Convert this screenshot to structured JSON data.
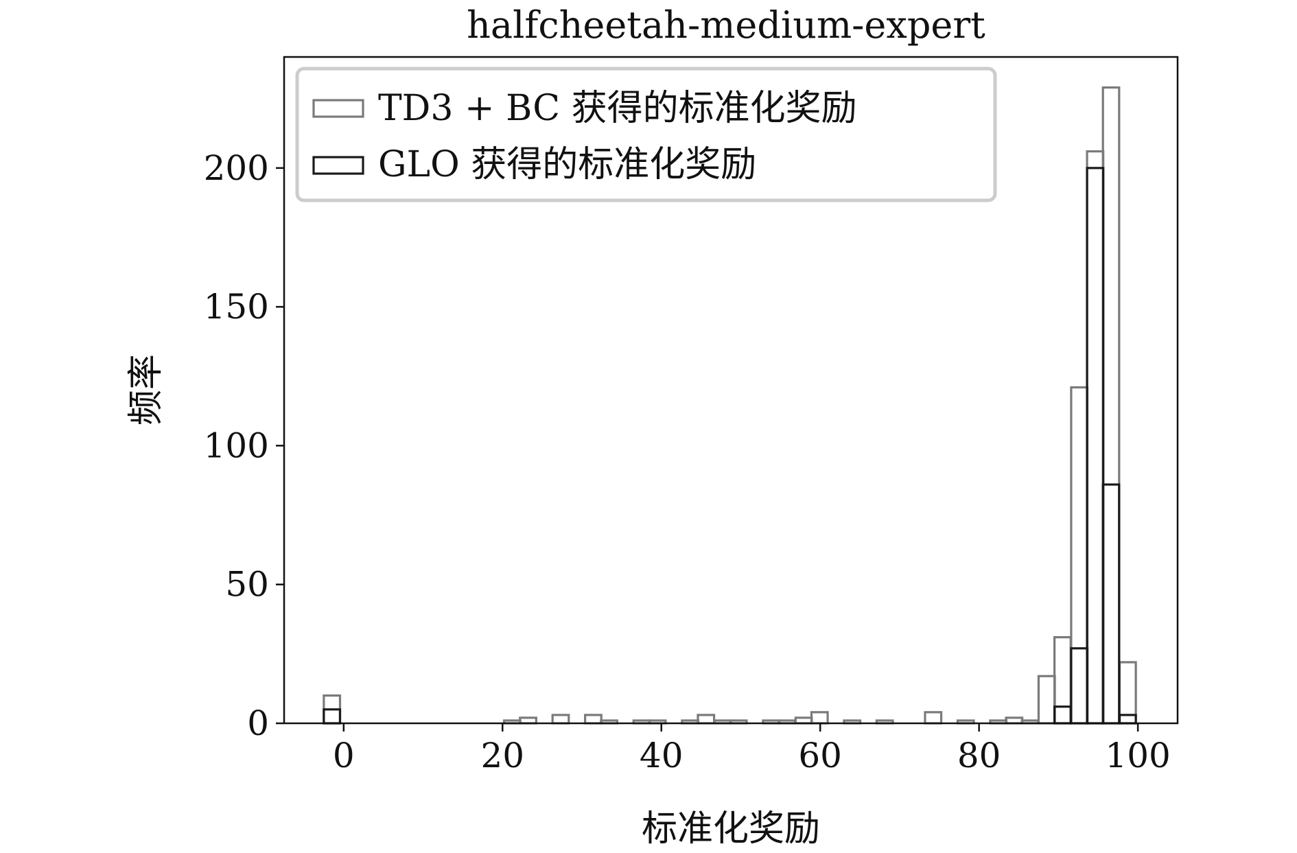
{
  "chart_data": {
    "type": "bar",
    "title": "halfcheetah-medium-expert",
    "xlabel": "标准化奖励",
    "ylabel": "频率",
    "xlim": [
      -7.5,
      105
    ],
    "ylim": [
      0,
      240
    ],
    "xticks": [
      0,
      20,
      40,
      60,
      80,
      100
    ],
    "yticks": [
      0,
      50,
      100,
      150,
      200
    ],
    "grid": false,
    "legend_position": "top-left",
    "bin_width": 2.04,
    "series": [
      {
        "name": "TD3 + BC 获得的标准化奖励",
        "color": "#7a7a7a",
        "bin_starts": [
          -2.5,
          20.2,
          22.2,
          26.3,
          30.4,
          32.4,
          36.5,
          38.5,
          42.6,
          44.6,
          46.7,
          48.7,
          52.8,
          54.8,
          56.9,
          58.9,
          63.0,
          67.1,
          73.2,
          77.3,
          81.4,
          83.4,
          85.4,
          87.5,
          89.5,
          91.6,
          93.6,
          95.6,
          97.7
        ],
        "values": [
          10,
          1,
          2,
          3,
          3,
          1,
          1,
          1,
          1,
          3,
          1,
          1,
          1,
          1,
          2,
          4,
          1,
          1,
          4,
          1,
          1,
          2,
          1,
          17,
          31,
          121,
          206,
          229,
          22
        ]
      },
      {
        "name": "GLO 获得的标准化奖励",
        "color": "#1a1a1a",
        "bin_starts": [
          -2.5,
          89.5,
          91.6,
          93.6,
          95.6,
          97.7
        ],
        "values": [
          5,
          6,
          27,
          200,
          86,
          3
        ]
      }
    ]
  }
}
